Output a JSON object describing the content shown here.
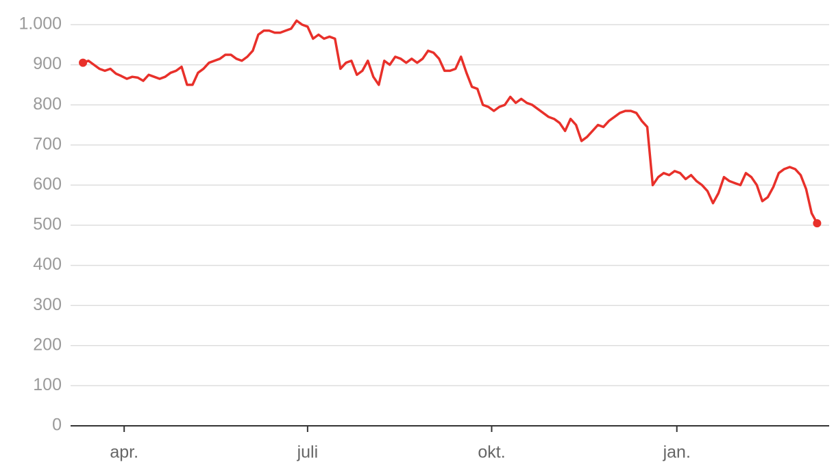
{
  "chart_data": {
    "type": "line",
    "color": "#e8302a",
    "grid": true,
    "ylim": [
      0,
      1000
    ],
    "yticks": [
      0,
      100,
      200,
      300,
      400,
      500,
      600,
      700,
      800,
      900,
      {
        "value": 1000,
        "label": "1.000"
      }
    ],
    "xlim": [
      -2.26,
      136.2
    ],
    "xticks": [
      {
        "value": 7.52,
        "label": "apr."
      },
      {
        "value": 41.0,
        "label": "juli"
      },
      {
        "value": 74.6,
        "label": "okt."
      },
      {
        "value": 108.4,
        "label": "jan."
      }
    ],
    "values": [
      905,
      910,
      900,
      890,
      885,
      890,
      878,
      872,
      865,
      870,
      868,
      860,
      875,
      870,
      865,
      870,
      880,
      885,
      895,
      850,
      850,
      880,
      890,
      905,
      910,
      915,
      925,
      925,
      915,
      910,
      920,
      935,
      975,
      985,
      985,
      980,
      980,
      985,
      990,
      1010,
      1000,
      995,
      965,
      975,
      965,
      970,
      965,
      890,
      905,
      910,
      875,
      885,
      910,
      870,
      850,
      910,
      900,
      920,
      915,
      905,
      915,
      905,
      915,
      935,
      930,
      915,
      885,
      885,
      890,
      920,
      880,
      845,
      840,
      800,
      795,
      785,
      795,
      800,
      820,
      805,
      815,
      805,
      800,
      790,
      780,
      770,
      765,
      755,
      735,
      765,
      750,
      710,
      720,
      735,
      750,
      745,
      760,
      770,
      780,
      785,
      785,
      780,
      760,
      745,
      600,
      620,
      630,
      625,
      635,
      630,
      615,
      625,
      610,
      600,
      585,
      555,
      580,
      620,
      610,
      605,
      600,
      630,
      620,
      600,
      560,
      570,
      595,
      630,
      640,
      645,
      640,
      625,
      590,
      530,
      505
    ]
  }
}
